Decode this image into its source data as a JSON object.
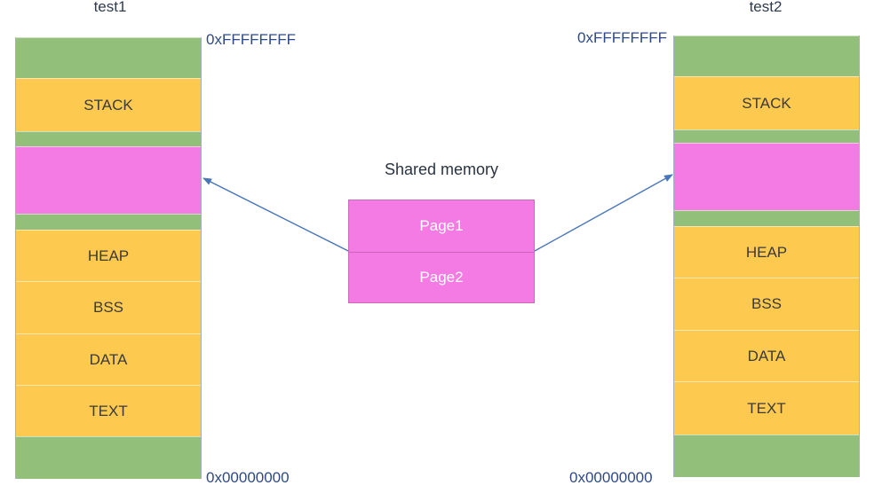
{
  "processes": [
    {
      "title": "test1",
      "top_address": "0xFFFFFFFF",
      "bottom_address": "0x00000000",
      "segments": [
        {
          "label": "",
          "color": "#92bf7a"
        },
        {
          "label": "STACK",
          "color": "#fdc94f"
        },
        {
          "label": "",
          "color": "#92bf7a"
        },
        {
          "label": "",
          "color": "#f47be3"
        },
        {
          "label": "",
          "color": "#92bf7a"
        },
        {
          "label": "HEAP",
          "color": "#fdc94f"
        },
        {
          "label": "BSS",
          "color": "#fdc94f"
        },
        {
          "label": "DATA",
          "color": "#fdc94f"
        },
        {
          "label": "TEXT",
          "color": "#fdc94f"
        },
        {
          "label": "",
          "color": "#92bf7a"
        }
      ]
    },
    {
      "title": "test2",
      "top_address": "0xFFFFFFFF",
      "bottom_address": "0x00000000",
      "segments": [
        {
          "label": "",
          "color": "#92bf7a"
        },
        {
          "label": "STACK",
          "color": "#fdc94f"
        },
        {
          "label": "",
          "color": "#92bf7a"
        },
        {
          "label": "",
          "color": "#f47be3"
        },
        {
          "label": "",
          "color": "#92bf7a"
        },
        {
          "label": "HEAP",
          "color": "#fdc94f"
        },
        {
          "label": "BSS",
          "color": "#fdc94f"
        },
        {
          "label": "DATA",
          "color": "#fdc94f"
        },
        {
          "label": "TEXT",
          "color": "#fdc94f"
        },
        {
          "label": "",
          "color": "#92bf7a"
        }
      ]
    }
  ],
  "shared_memory": {
    "title": "Shared memory",
    "pages": [
      "Page1",
      "Page2"
    ],
    "color": "#f47be3"
  },
  "arrow_color": "#4a76b8"
}
